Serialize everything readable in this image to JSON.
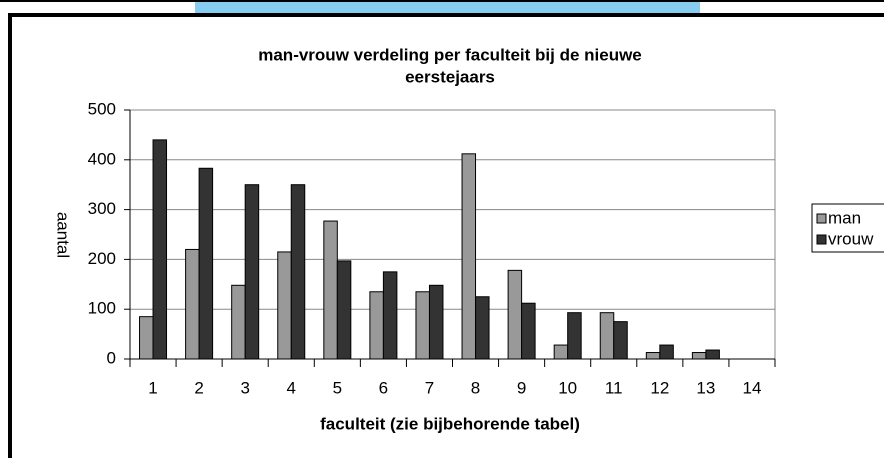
{
  "chart_data": {
    "type": "bar",
    "title": [
      "man-vrouw verdeling per faculteit bij de nieuwe",
      "eerstejaars"
    ],
    "x_label": "faculteit (zie bijbehorende tabel)",
    "y_label": "aantal",
    "categories": [
      "1",
      "2",
      "3",
      "4",
      "5",
      "6",
      "7",
      "8",
      "9",
      "10",
      "11",
      "12",
      "13",
      "14"
    ],
    "series": [
      {
        "name": "man",
        "color": "#999999",
        "values": [
          85,
          220,
          148,
          215,
          277,
          135,
          135,
          412,
          178,
          28,
          93,
          13,
          13,
          0
        ]
      },
      {
        "name": "vrouw",
        "color": "#333333",
        "values": [
          440,
          383,
          350,
          350,
          197,
          175,
          148,
          125,
          112,
          93,
          75,
          28,
          18,
          0
        ]
      }
    ],
    "ylim": [
      0,
      500
    ],
    "yticks": [
      0,
      100,
      200,
      300,
      400,
      500
    ],
    "grid": true,
    "legend": "right"
  }
}
